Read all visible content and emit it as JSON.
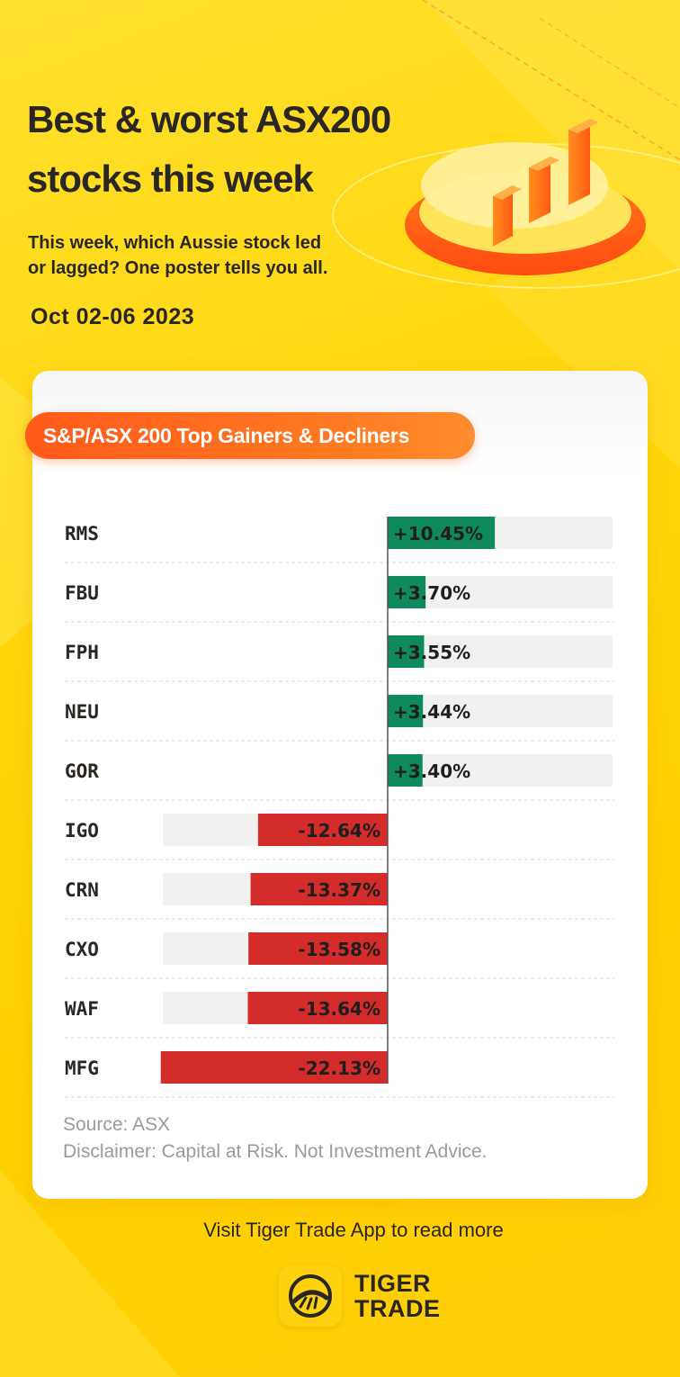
{
  "header": {
    "title_line1": "Best & worst ASX200",
    "title_line2": "stocks this week",
    "subtitle_line1": "This week, which Aussie stock led",
    "subtitle_line2": "or lagged? One poster tells you all.",
    "date": "Oct 02-06 2023"
  },
  "card": {
    "pill_label": "S&P/ASX 200 Top Gainers & Decliners",
    "source": "Source: ASX",
    "disclaimer": "Disclaimer: Capital at Risk. Not Investment Advice."
  },
  "footer": {
    "visit": "Visit Tiger Trade App to read more",
    "brand_line1": "TIGER",
    "brand_line2": "TRADE",
    "logo_icon": "tiger-trade-logo-icon"
  },
  "colors": {
    "gain": "#0e8a5c",
    "loss": "#d42b2b",
    "track": "#f1f1ef",
    "accent": "#ff6a1f"
  },
  "chart_data": {
    "type": "bar",
    "orientation": "horizontal-diverging",
    "title": "S&P/ASX 200 Top Gainers & Decliners",
    "categories": [
      "RMS",
      "FBU",
      "FPH",
      "NEU",
      "GOR",
      "IGO",
      "CRN",
      "CXO",
      "WAF",
      "MFG"
    ],
    "values": [
      10.45,
      3.7,
      3.55,
      3.44,
      3.4,
      -12.64,
      -13.37,
      -13.58,
      -13.64,
      -22.13
    ],
    "labels": [
      "+10.45%",
      "+3.70%",
      "+3.55%",
      "+3.44%",
      "+3.40%",
      "-12.64%",
      "-13.37%",
      "-13.58%",
      "-13.64%",
      "-22.13%"
    ],
    "unit": "%",
    "xlim": [
      -26,
      26
    ],
    "grid": false,
    "legend": "none"
  }
}
